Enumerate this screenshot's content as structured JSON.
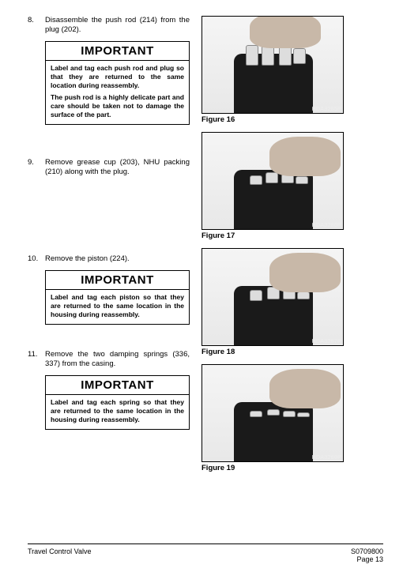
{
  "steps": [
    {
      "num": "8.",
      "text": "Disassemble the push rod (214) from the plug (202).",
      "important": {
        "title": "IMPORTANT",
        "paras": [
          "Label and tag each push rod and plug so that they are returned to the same location during reassembly.",
          "The push rod is a highly delicate part and care should be taken not to damage the surface of the part."
        ]
      }
    },
    {
      "num": "9.",
      "text": "Remove grease cup (203), NHU packing (210) along with the plug.",
      "important": null
    },
    {
      "num": "10.",
      "text": "Remove the piston (224).",
      "important": {
        "title": "IMPORTANT",
        "paras": [
          "Label and tag each piston so that they are returned to the same location in the housing during reassembly."
        ]
      }
    },
    {
      "num": "11.",
      "text": "Remove the two damping springs (336, 337) from the casing.",
      "important": {
        "title": "IMPORTANT",
        "paras": [
          "Label and tag each spring so that they are returned to the same location in the housing during reassembly."
        ]
      }
    }
  ],
  "figures": [
    {
      "caption": "Figure 16",
      "id": "HDA3285P"
    },
    {
      "caption": "Figure 17",
      "id": "HDA3286P"
    },
    {
      "caption": "Figure 18",
      "id": "HDA3287P"
    },
    {
      "caption": "Figure 19",
      "id": "HDA3288P"
    }
  ],
  "footer": {
    "left": "Travel Control Valve",
    "right_doc": "S0709800",
    "right_page": "Page 13"
  },
  "gap_before_step": [
    0,
    30,
    90,
    20
  ]
}
